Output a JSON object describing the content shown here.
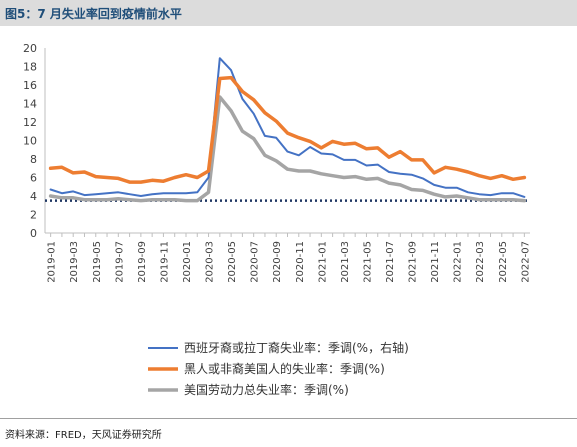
{
  "header": {
    "title": "图5：7 月失业率回到疫情前水平"
  },
  "footer": {
    "source": "资料来源：FRED，天风证券研究所"
  },
  "colors": {
    "hispanic": "#4472c4",
    "black": "#ed7d31",
    "overall": "#a5a5a5",
    "reference": "#203864",
    "axis": "#bfbfbf",
    "text": "#404040"
  },
  "chart_data": {
    "type": "line",
    "title": "",
    "xlabel": "",
    "ylabel": "",
    "ylim": [
      0,
      20
    ],
    "yticks": [
      0,
      2,
      4,
      6,
      8,
      10,
      12,
      14,
      16,
      18,
      20
    ],
    "grid": false,
    "legend_position": "bottom",
    "x": [
      "2019-01",
      "2019-02",
      "2019-03",
      "2019-04",
      "2019-05",
      "2019-06",
      "2019-07",
      "2019-08",
      "2019-09",
      "2019-10",
      "2019-11",
      "2019-12",
      "2020-01",
      "2020-02",
      "2020-03",
      "2020-04",
      "2020-05",
      "2020-06",
      "2020-07",
      "2020-08",
      "2020-09",
      "2020-10",
      "2020-11",
      "2020-12",
      "2021-01",
      "2021-02",
      "2021-03",
      "2021-04",
      "2021-05",
      "2021-06",
      "2021-07",
      "2021-08",
      "2021-09",
      "2021-10",
      "2021-11",
      "2021-12",
      "2022-01",
      "2022-02",
      "2022-03",
      "2022-04",
      "2022-05",
      "2022-06",
      "2022-07"
    ],
    "x_tick_labels": [
      "2019-01",
      "2019-03",
      "2019-05",
      "2019-07",
      "2019-09",
      "2019-11",
      "2020-01",
      "2020-03",
      "2020-05",
      "2020-07",
      "2020-09",
      "2020-11",
      "2021-01",
      "2021-03",
      "2021-05",
      "2021-07",
      "2021-09",
      "2021-11",
      "2022-01",
      "2022-03",
      "2022-05",
      "2022-07"
    ],
    "reference_line": {
      "value": 3.5,
      "style": "dotted"
    },
    "series": [
      {
        "name": "西班牙裔或拉丁裔失业率：季调(%，右轴)",
        "color_key": "hispanic",
        "values": [
          4.7,
          4.3,
          4.5,
          4.1,
          4.2,
          4.3,
          4.4,
          4.2,
          4.0,
          4.2,
          4.3,
          4.3,
          4.3,
          4.4,
          6.0,
          18.9,
          17.6,
          14.5,
          12.9,
          10.5,
          10.3,
          8.8,
          8.4,
          9.3,
          8.6,
          8.5,
          7.9,
          7.9,
          7.3,
          7.4,
          6.6,
          6.4,
          6.3,
          5.9,
          5.2,
          4.9,
          4.9,
          4.4,
          4.2,
          4.1,
          4.3,
          4.3,
          3.9
        ]
      },
      {
        "name": "黑人或非裔美国人的失业率：季调(%)",
        "color_key": "black",
        "values": [
          7.0,
          7.1,
          6.5,
          6.6,
          6.1,
          6.0,
          5.9,
          5.5,
          5.5,
          5.7,
          5.6,
          6.0,
          6.3,
          6.0,
          6.7,
          16.7,
          16.8,
          15.3,
          14.4,
          13.0,
          12.1,
          10.8,
          10.3,
          9.9,
          9.2,
          9.9,
          9.6,
          9.7,
          9.1,
          9.2,
          8.2,
          8.8,
          7.9,
          7.9,
          6.5,
          7.1,
          6.9,
          6.6,
          6.2,
          5.9,
          6.2,
          5.8,
          6.0
        ]
      },
      {
        "name": "美国劳动力总失业率：季调(%)",
        "color_key": "overall",
        "values": [
          4.0,
          3.8,
          3.8,
          3.6,
          3.6,
          3.6,
          3.7,
          3.6,
          3.5,
          3.6,
          3.6,
          3.6,
          3.5,
          3.5,
          4.4,
          14.7,
          13.2,
          11.0,
          10.2,
          8.4,
          7.8,
          6.9,
          6.7,
          6.7,
          6.4,
          6.2,
          6.0,
          6.1,
          5.8,
          5.9,
          5.4,
          5.2,
          4.7,
          4.6,
          4.2,
          3.9,
          4.0,
          3.8,
          3.6,
          3.6,
          3.6,
          3.6,
          3.5
        ]
      }
    ]
  }
}
